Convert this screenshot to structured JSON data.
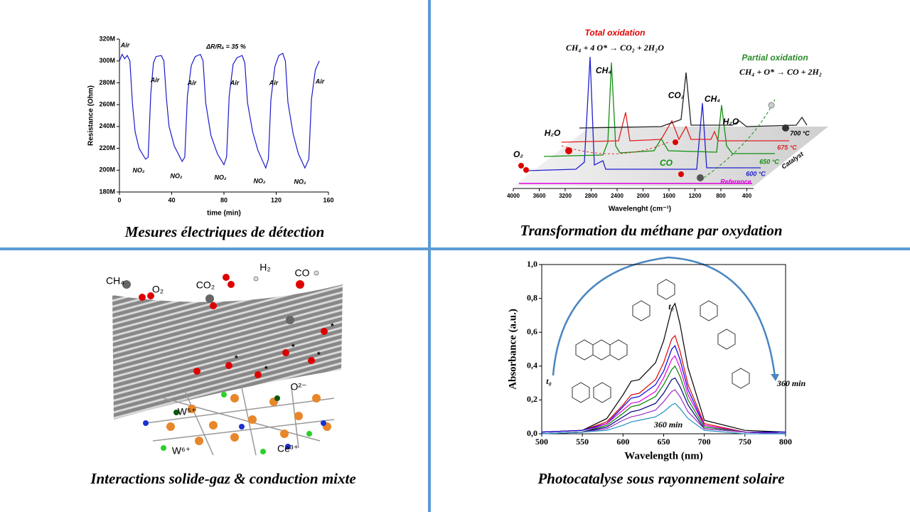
{
  "chart_data": [
    {
      "type": "line",
      "ytitle": "Resistance (Ohm)",
      "xtitle": "time (min)",
      "color": "#1a1acc",
      "x": [
        0,
        2,
        4,
        6,
        8,
        10,
        12,
        15,
        20,
        22,
        24,
        26,
        28,
        32,
        34,
        36,
        38,
        42,
        48,
        50,
        52,
        55,
        58,
        62,
        64,
        66,
        70,
        75,
        80,
        82,
        84,
        87,
        90,
        94,
        96,
        98,
        102,
        106,
        112,
        114,
        116,
        119,
        122,
        125,
        127,
        129,
        133,
        137,
        142,
        145,
        147,
        150,
        153
      ],
      "values": [
        300000000,
        306000000,
        302000000,
        305000000,
        300000000,
        260000000,
        235000000,
        220000000,
        210000000,
        212000000,
        270000000,
        298000000,
        304000000,
        305000000,
        300000000,
        265000000,
        240000000,
        222000000,
        208000000,
        212000000,
        268000000,
        296000000,
        304000000,
        306000000,
        300000000,
        262000000,
        232000000,
        215000000,
        205000000,
        212000000,
        268000000,
        297000000,
        303000000,
        305000000,
        298000000,
        262000000,
        235000000,
        218000000,
        202000000,
        210000000,
        265000000,
        295000000,
        305000000,
        307000000,
        300000000,
        262000000,
        233000000,
        215000000,
        202000000,
        210000000,
        265000000,
        292000000,
        300000000
      ],
      "xlim": [
        0,
        160
      ],
      "xticks": [
        0,
        40,
        80,
        120,
        160
      ],
      "ylim": [
        180000000,
        320000000
      ],
      "yticks": [
        {
          "value": 180000000,
          "label": "180M"
        },
        {
          "value": 200000000,
          "label": "200M"
        },
        {
          "value": 220000000,
          "label": "220M"
        },
        {
          "value": 240000000,
          "label": "240M"
        },
        {
          "value": 260000000,
          "label": "260M"
        },
        {
          "value": 280000000,
          "label": "280M"
        },
        {
          "value": 300000000,
          "label": "300M"
        },
        {
          "value": 320000000,
          "label": "320M"
        }
      ],
      "annotations": [
        "Air",
        "Air",
        "Air",
        "Air",
        "Air",
        "Air",
        "NO₂",
        "NO₂",
        "NO₂",
        "NO₂",
        "NO₂",
        "ΔR/Rₐ = 35 %"
      ]
    },
    {
      "type": "line",
      "ytitle": "Absorbance (a.u.)",
      "xtitle": "Wavelength (nm)",
      "x": [
        500,
        550,
        580,
        600,
        610,
        620,
        640,
        650,
        660,
        664,
        670,
        680,
        700,
        750,
        800
      ],
      "series": [
        {
          "color": "#000000",
          "values": [
            0.01,
            0.02,
            0.09,
            0.23,
            0.31,
            0.32,
            0.42,
            0.55,
            0.74,
            0.77,
            0.65,
            0.39,
            0.08,
            0.02,
            0.01
          ]
        },
        {
          "color": "#e00000",
          "values": [
            0.01,
            0.02,
            0.07,
            0.17,
            0.23,
            0.24,
            0.32,
            0.42,
            0.56,
            0.58,
            0.49,
            0.29,
            0.06,
            0.01,
            0.01
          ]
        },
        {
          "color": "#0000e0",
          "values": [
            0.01,
            0.02,
            0.06,
            0.16,
            0.21,
            0.22,
            0.29,
            0.37,
            0.5,
            0.52,
            0.44,
            0.26,
            0.05,
            0.01,
            0.01
          ]
        },
        {
          "color": "#e000e0",
          "values": [
            0,
            0.01,
            0.06,
            0.14,
            0.18,
            0.19,
            0.25,
            0.33,
            0.44,
            0.46,
            0.39,
            0.23,
            0.05,
            0.01,
            0
          ]
        },
        {
          "color": "#008000",
          "values": [
            0,
            0.01,
            0.05,
            0.12,
            0.16,
            0.17,
            0.22,
            0.29,
            0.38,
            0.4,
            0.34,
            0.2,
            0.04,
            0.01,
            0
          ]
        },
        {
          "color": "#000080",
          "values": [
            0,
            0.01,
            0.04,
            0.1,
            0.13,
            0.14,
            0.18,
            0.24,
            0.32,
            0.33,
            0.28,
            0.17,
            0.03,
            0.01,
            0
          ]
        },
        {
          "color": "#9b30c0",
          "values": [
            0,
            0.01,
            0.03,
            0.08,
            0.1,
            0.11,
            0.14,
            0.19,
            0.25,
            0.26,
            0.22,
            0.13,
            0.03,
            0.01,
            0
          ]
        },
        {
          "color": "#1e90c0",
          "values": [
            0,
            0.01,
            0.02,
            0.05,
            0.07,
            0.08,
            0.1,
            0.13,
            0.17,
            0.18,
            0.15,
            0.09,
            0.02,
            0,
            0
          ]
        }
      ],
      "xlim": [
        500,
        800
      ],
      "xticks": [
        500,
        550,
        600,
        650,
        700,
        750,
        800
      ],
      "ylim": [
        0,
        1
      ],
      "yticks": [
        {
          "value": 0,
          "label": "0,0"
        },
        {
          "value": 0.2,
          "label": "0,2"
        },
        {
          "value": 0.4,
          "label": "0,4"
        },
        {
          "value": 0.6,
          "label": "0,6"
        },
        {
          "value": 0.8,
          "label": "0,8"
        },
        {
          "value": 1,
          "label": "1,0"
        }
      ],
      "annotations": [
        "t₀",
        "t₀",
        "360 min",
        "360 min"
      ]
    }
  ],
  "spectra": {
    "total": "Total oxidation",
    "total_eq": "CH₄ + 4 O* → CO₂ + 2H₂O",
    "partial": "Partial oxidation",
    "partial_eq": "CH₄ + O* → CO + 2H₂",
    "labels": [
      "CH₄",
      "CO₂",
      "CH₄",
      "H₂O",
      "H₂O",
      "O₂",
      "CO",
      "700 °C",
      "675 °C",
      "650 °C",
      "600 °C",
      "Reference",
      "Catalyst"
    ],
    "ticks": [
      "4000",
      "3600",
      "3200",
      "2800",
      "2400",
      "2000",
      "1600",
      "1200",
      "800",
      "400"
    ],
    "xtitle": "Wavelenght (cm⁻¹)"
  },
  "interactions": {
    "labels": [
      "CH₄",
      "O₂",
      "CO₂",
      "H₂",
      "CO",
      "O²⁻",
      "W⁵⁺",
      "W⁶⁺",
      "Ce³⁺"
    ],
    "star": "*"
  },
  "captions": [
    "Mesures électriques de détection",
    "Transformation du méthane par oxydation",
    "Interactions solide-gaz & conduction mixte",
    "Photocatalyse sous rayonnement solaire"
  ]
}
